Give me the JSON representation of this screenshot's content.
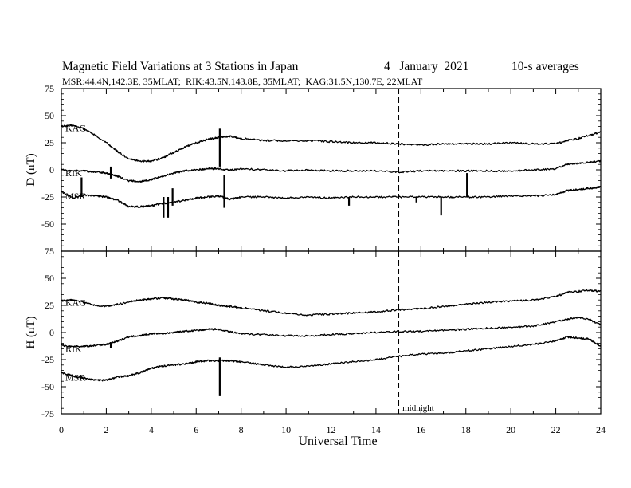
{
  "header": {
    "title": "Magnetic Field Variations at 3 Stations in Japan",
    "date": "4   January  2021",
    "averaging": "10-s averages",
    "stations_line": "MSR:44.4N,142.3E, 35MLAT;  RIK:43.5N,143.8E, 35MLAT;  KAG:31.5N,130.7E, 22MLAT"
  },
  "chart_data": [
    {
      "type": "line",
      "ylabel": "D (nT)",
      "xlabel": "",
      "xlim": [
        0,
        24
      ],
      "ylim": [
        -75,
        75
      ],
      "xticks": [
        0,
        2,
        4,
        6,
        8,
        10,
        12,
        14,
        16,
        18,
        20,
        22,
        24
      ],
      "yticks": [
        75,
        50,
        25,
        0,
        -25,
        -50,
        -75
      ],
      "marker": {
        "x": 15,
        "style": "dashed",
        "label": ""
      },
      "series": [
        {
          "name": "KAG",
          "x": [
            0,
            0.5,
            1,
            1.5,
            2,
            2.5,
            3,
            3.5,
            4,
            4.5,
            5,
            5.5,
            6,
            6.5,
            7,
            7.5,
            8,
            9,
            10,
            11,
            12,
            13,
            14,
            15,
            16,
            17,
            18,
            19,
            20,
            21,
            22,
            22.5,
            23,
            23.5,
            24
          ],
          "values": [
            40,
            41,
            38,
            32,
            25,
            17,
            10,
            8,
            8,
            11,
            16,
            21,
            25,
            28,
            30,
            31,
            29,
            27,
            27,
            27,
            26,
            25,
            25,
            24,
            23,
            24,
            24,
            24,
            25,
            24,
            24,
            27,
            29,
            32,
            35
          ],
          "spikes": [
            {
              "x": 7.05,
              "values": [
                3,
                38
              ]
            }
          ]
        },
        {
          "name": "RIK",
          "x": [
            0,
            0.5,
            1,
            1.5,
            2,
            2.5,
            3,
            3.5,
            4,
            4.5,
            5,
            5.5,
            6,
            6.5,
            7,
            7.5,
            8,
            9,
            10,
            11,
            12,
            13,
            14,
            15,
            16,
            17,
            18,
            19,
            20,
            21,
            22,
            22.5,
            23,
            23.5,
            24
          ],
          "values": [
            0,
            -1,
            -1,
            -2,
            -3,
            -6,
            -10,
            -11,
            -9,
            -6,
            -3,
            -1,
            0,
            1,
            1,
            0,
            1,
            0,
            -1,
            0,
            -1,
            -1,
            -1,
            -2,
            -1,
            -1,
            -1,
            -1,
            -1,
            0,
            1,
            5,
            6,
            7,
            8
          ],
          "spikes": [
            {
              "x": 2.2,
              "values": [
                -8,
                3
              ]
            }
          ]
        },
        {
          "name": "MSR",
          "x": [
            0,
            0.5,
            1,
            1.5,
            2,
            2.5,
            3,
            3.5,
            4,
            4.5,
            5,
            5.5,
            6,
            6.5,
            7,
            7.5,
            8,
            9,
            10,
            11,
            12,
            13,
            14,
            15,
            16,
            17,
            18,
            19,
            20,
            21,
            22,
            22.5,
            23,
            23.5,
            24
          ],
          "values": [
            -20,
            -26,
            -23,
            -24,
            -25,
            -28,
            -34,
            -34,
            -33,
            -31,
            -30,
            -28,
            -26,
            -25,
            -24,
            -27,
            -25,
            -25,
            -26,
            -25,
            -26,
            -25,
            -25,
            -25,
            -25,
            -25,
            -25,
            -25,
            -24,
            -24,
            -23,
            -19,
            -18,
            -17,
            -16
          ],
          "spikes": [
            {
              "x": 0.9,
              "values": [
                -25,
                -7
              ]
            },
            {
              "x": 4.55,
              "values": [
                -44,
                -25
              ]
            },
            {
              "x": 4.75,
              "values": [
                -44,
                -25
              ]
            },
            {
              "x": 4.95,
              "values": [
                -33,
                -17
              ]
            },
            {
              "x": 7.25,
              "values": [
                -35,
                -5
              ]
            },
            {
              "x": 12.8,
              "values": [
                -33,
                -25
              ]
            },
            {
              "x": 15.8,
              "values": [
                -30,
                -25
              ]
            },
            {
              "x": 16.9,
              "values": [
                -42,
                -25
              ]
            },
            {
              "x": 18.05,
              "values": [
                -25,
                -3
              ]
            }
          ]
        }
      ]
    },
    {
      "type": "line",
      "ylabel": "H (nT)",
      "xlabel": "Universal Time",
      "xlim": [
        0,
        24
      ],
      "ylim": [
        -75,
        75
      ],
      "xticks": [
        0,
        2,
        4,
        6,
        8,
        10,
        12,
        14,
        16,
        18,
        20,
        22,
        24
      ],
      "yticks": [
        75,
        50,
        25,
        0,
        -25,
        -50,
        -75
      ],
      "marker": {
        "x": 15,
        "style": "dashed",
        "label": "midnight"
      },
      "series": [
        {
          "name": "KAG",
          "x": [
            0,
            0.5,
            1,
            1.5,
            2,
            2.5,
            3,
            3.5,
            4,
            4.5,
            5,
            5.5,
            6,
            6.5,
            7,
            7.5,
            8,
            9,
            10,
            11,
            12,
            13,
            14,
            15,
            16,
            17,
            18,
            19,
            20,
            21,
            22,
            22.5,
            23,
            23.5,
            24
          ],
          "values": [
            29,
            30,
            28,
            25,
            24,
            26,
            28,
            30,
            31,
            32,
            31,
            30,
            28,
            27,
            25,
            24,
            23,
            20,
            18,
            16,
            17,
            18,
            19,
            21,
            22,
            24,
            26,
            28,
            29,
            30,
            33,
            37,
            38,
            39,
            38
          ],
          "spikes": []
        },
        {
          "name": "RIK",
          "x": [
            0,
            0.5,
            1,
            1.5,
            2,
            2.5,
            3,
            3.5,
            4,
            4.5,
            5,
            5.5,
            6,
            6.5,
            7,
            7.5,
            8,
            9,
            10,
            11,
            12,
            13,
            14,
            15,
            16,
            17,
            18,
            19,
            20,
            21,
            22,
            22.5,
            23,
            23.5,
            24
          ],
          "values": [
            -12,
            -13,
            -13,
            -12,
            -11,
            -8,
            -4,
            -3,
            -1,
            -1,
            0,
            1,
            2,
            3,
            3,
            1,
            -1,
            -2,
            -3,
            -3,
            -2,
            -1,
            0,
            1,
            1,
            2,
            3,
            4,
            5,
            6,
            10,
            12,
            14,
            12,
            7
          ],
          "spikes": [
            {
              "x": 2.2,
              "values": [
                -14,
                -9
              ]
            }
          ]
        },
        {
          "name": "MSR",
          "x": [
            0,
            0.5,
            1,
            1.5,
            2,
            2.5,
            3,
            3.5,
            4,
            4.5,
            5,
            5.5,
            6,
            6.5,
            7,
            7.5,
            8,
            9,
            10,
            11,
            12,
            13,
            14,
            15,
            16,
            17,
            18,
            19,
            20,
            21,
            22,
            22.5,
            23,
            23.5,
            24
          ],
          "values": [
            -37,
            -40,
            -42,
            -44,
            -44,
            -41,
            -40,
            -37,
            -33,
            -31,
            -30,
            -29,
            -27,
            -26,
            -26,
            -26,
            -27,
            -30,
            -32,
            -31,
            -29,
            -27,
            -25,
            -22,
            -20,
            -19,
            -17,
            -15,
            -13,
            -11,
            -8,
            -4,
            -5,
            -6,
            -13
          ],
          "spikes": [
            {
              "x": 7.05,
              "values": [
                -58,
                -23
              ]
            }
          ]
        }
      ]
    }
  ]
}
